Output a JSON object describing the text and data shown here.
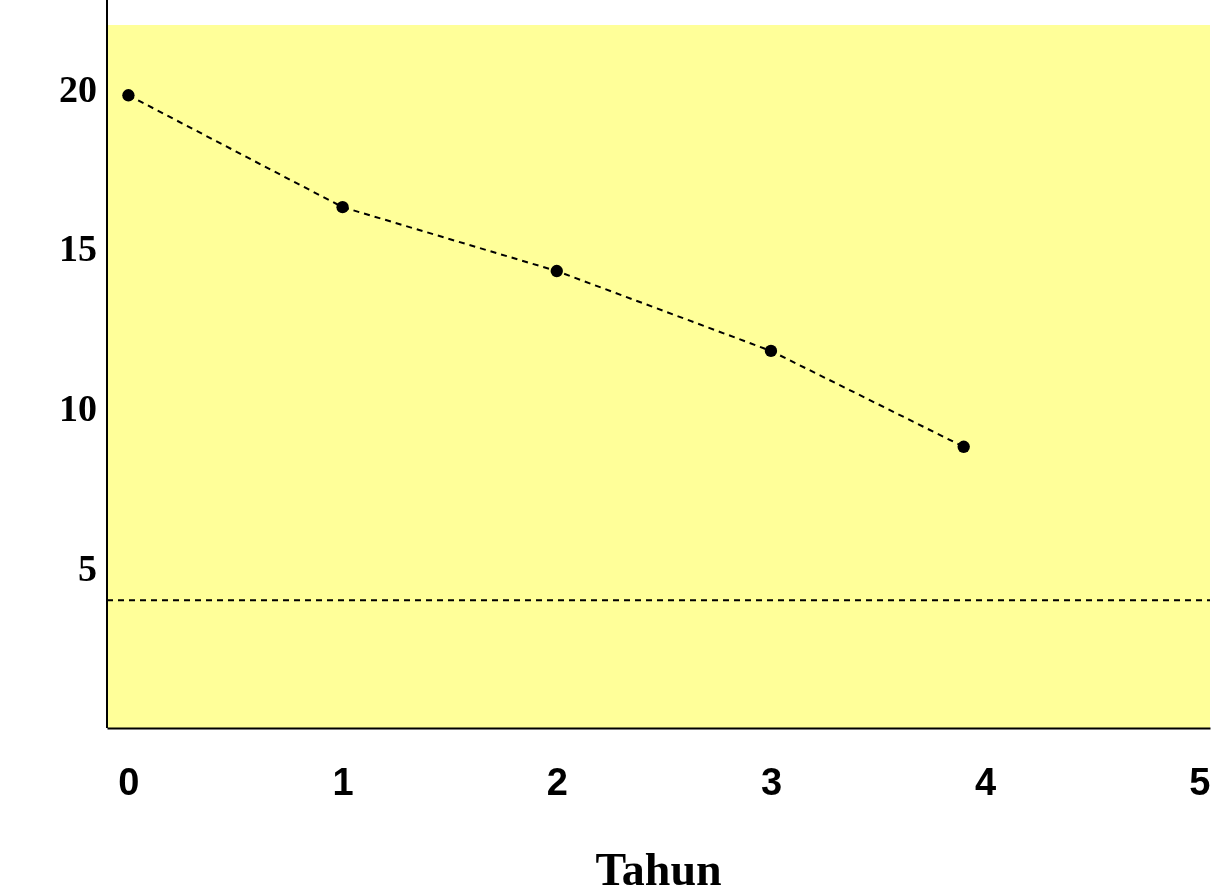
{
  "chart_data": {
    "type": "line",
    "xlabel": "Tahun",
    "x": [
      0,
      1,
      2,
      3,
      3.9
    ],
    "series": [
      {
        "color": "#000000",
        "values": [
          19.8,
          16.3,
          14.3,
          11.8,
          8.8
        ]
      }
    ],
    "xlim": [
      -0.1,
      5.05
    ],
    "xticks": [
      0,
      1,
      2,
      3,
      4,
      5
    ],
    "ylim": [
      0,
      22
    ],
    "yticks": [
      5,
      10,
      15,
      20
    ],
    "marker": "circle",
    "line_style": "dashed",
    "grid": false,
    "ref_lines": [
      {
        "axis": "y",
        "value": 4,
        "color": "#000000",
        "line_style": "dashed"
      }
    ]
  }
}
